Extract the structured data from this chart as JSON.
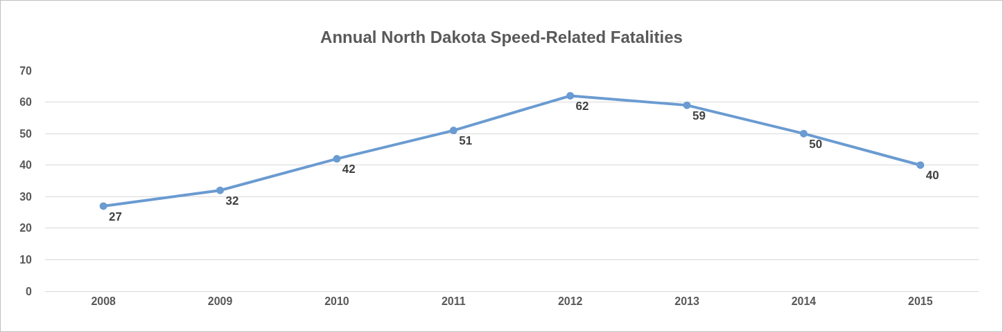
{
  "chart_data": {
    "type": "line",
    "title": "Annual North Dakota Speed-Related Fatalities",
    "categories": [
      "2008",
      "2009",
      "2010",
      "2011",
      "2012",
      "2013",
      "2014",
      "2015"
    ],
    "series": [
      {
        "color": "#6a9bd1",
        "values": [
          27,
          32,
          42,
          51,
          62,
          59,
          50,
          40
        ]
      }
    ],
    "ylim": [
      0,
      70
    ],
    "yticks": [
      0,
      10,
      20,
      30,
      40,
      50,
      60,
      70
    ],
    "grid": "y",
    "marker": "circle",
    "line_style": "solid",
    "data_labels": true
  }
}
